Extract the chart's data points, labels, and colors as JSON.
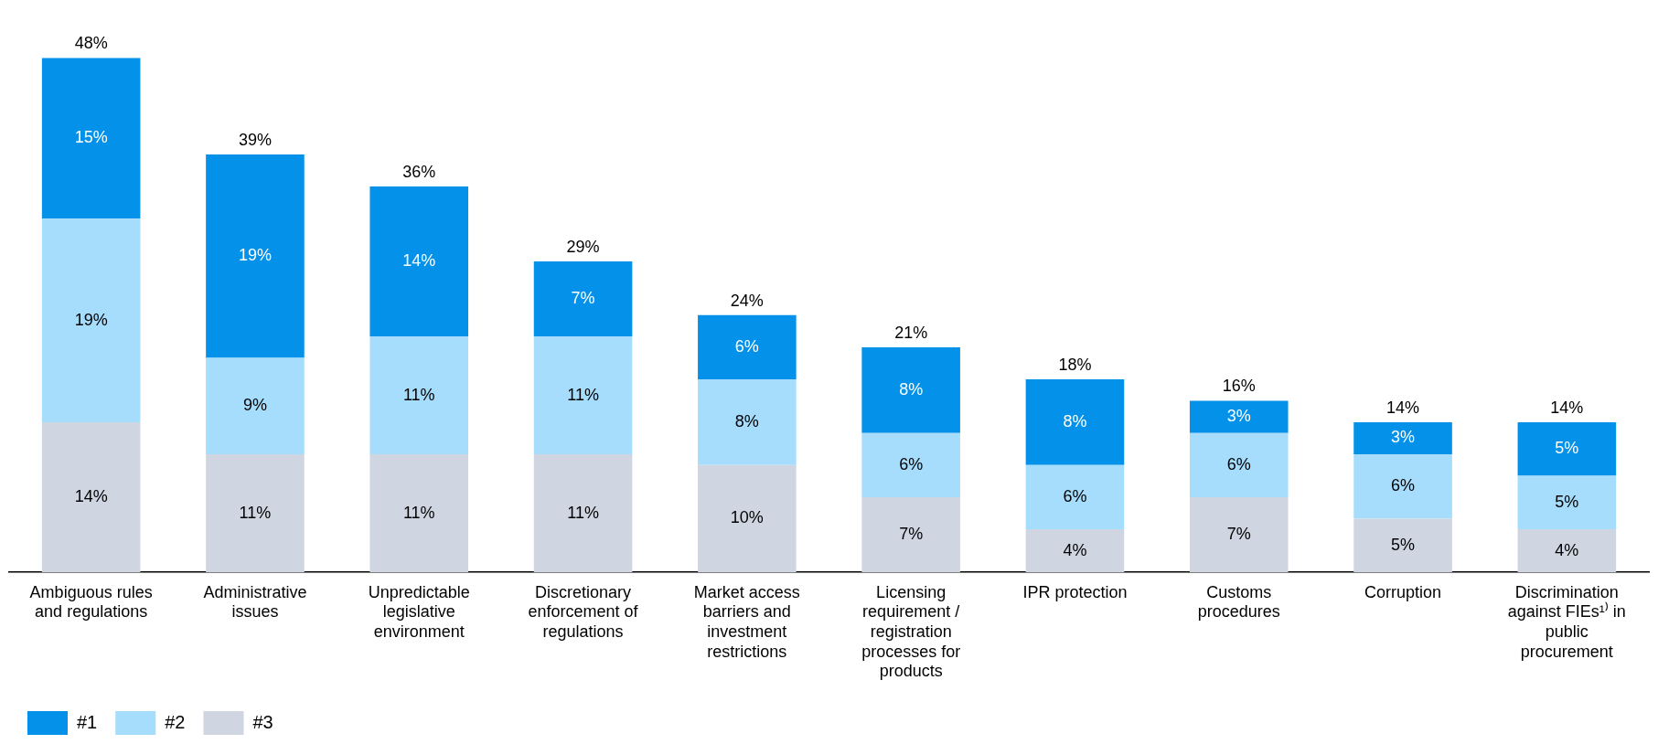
{
  "chart_data": {
    "type": "bar",
    "stacked": true,
    "legend": "bottom left",
    "categories": [
      "Ambiguous rules and regulations",
      "Administrative issues",
      "Unpredictable legislative environment",
      "Discretionary enforcement of regulations",
      "Market access barriers and investment restrictions",
      "Licensing requirement / registration processes for products",
      "IPR protection",
      "Customs procedures",
      "Corruption",
      "Discrimination against FIEs¹⁾ in public procurement"
    ],
    "series": [
      {
        "name": "#3",
        "color": "#cfd5e1",
        "values": [
          14,
          11,
          11,
          11,
          10,
          7,
          4,
          7,
          5,
          4
        ],
        "value_labels": [
          "14%",
          "11%",
          "11%",
          "11%",
          "10%",
          "7%",
          "4%",
          "7%",
          "5%",
          "4%"
        ]
      },
      {
        "name": "#2",
        "color": "#a6dcfc",
        "values": [
          19,
          9,
          11,
          11,
          8,
          6,
          6,
          6,
          6,
          5
        ],
        "value_labels": [
          "19%",
          "9%",
          "11%",
          "11%",
          "8%",
          "6%",
          "6%",
          "6%",
          "6%",
          "5%"
        ]
      },
      {
        "name": "#1",
        "color": "#0391e9",
        "values": [
          15,
          19,
          14,
          7,
          6,
          8,
          8,
          3,
          3,
          5
        ],
        "value_labels": [
          "15%",
          "19%",
          "14%",
          "7%",
          "6%",
          "8%",
          "8%",
          "3%",
          "3%",
          "5%"
        ]
      }
    ],
    "totals": [
      "48%",
      "39%",
      "36%",
      "29%",
      "24%",
      "21%",
      "18%",
      "16%",
      "14%",
      "14%"
    ]
  }
}
